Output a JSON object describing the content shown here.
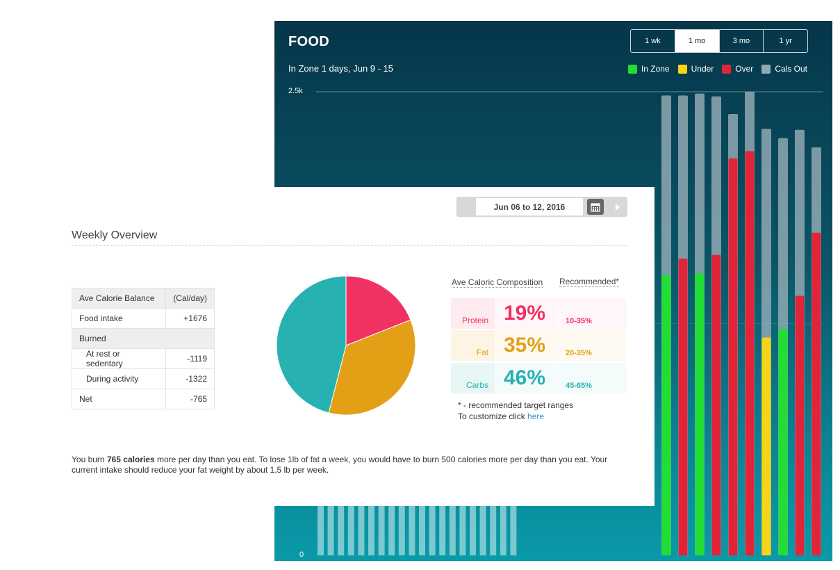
{
  "food_panel": {
    "title": "FOOD",
    "subtitle": "In Zone 1 days, Jun 9 - 15",
    "range_tabs": [
      {
        "label": "1 wk",
        "active": false
      },
      {
        "label": "1 mo",
        "active": true
      },
      {
        "label": "3 mo",
        "active": false
      },
      {
        "label": "1 yr",
        "active": false
      }
    ],
    "legend": [
      {
        "label": "In Zone",
        "color": "#22dd33"
      },
      {
        "label": "Under",
        "color": "#f6d417"
      },
      {
        "label": "Over",
        "color": "#e0243a"
      },
      {
        "label": "Cals Out",
        "color": "#8fa8b2"
      }
    ],
    "y_top_label": "2.5k",
    "y_zero_label": "0"
  },
  "chart_data": {
    "type": "bar",
    "ylim": [
      0,
      2500
    ],
    "grid": true,
    "legend_position": "top-right",
    "hidden_days": 20,
    "hidden_cals_out": 305,
    "series": [
      {
        "name": "Cals Out",
        "color": "#8fa8b2",
        "values": [
          2480,
          2480,
          2490,
          2475,
          2380,
          2500,
          2300,
          2250,
          2295,
          2200
        ]
      },
      {
        "name": "Food",
        "values": [
          1510,
          1600,
          1520,
          1620,
          2140,
          2180,
          1175,
          1220,
          1400,
          1740
        ]
      }
    ],
    "food_status": [
      "In Zone",
      "Over",
      "In Zone",
      "Over",
      "Over",
      "Over",
      "Under",
      "In Zone",
      "Over",
      "Over"
    ]
  },
  "overview": {
    "date_range": "Jun 06 to 12, 2016",
    "heading": "Weekly Overview",
    "table": {
      "header_label": "Ave Calorie Balance",
      "header_unit": "(Cal/day)",
      "food_intake_label": "Food intake",
      "food_intake_value": "+1676",
      "burned_label": "Burned",
      "rest_label": "At rest or sedentary",
      "rest_value": "-1119",
      "activity_label": "During activity",
      "activity_value": "-1322",
      "net_label": "Net",
      "net_value": "-765"
    },
    "composition_title": "Ave Caloric Composition",
    "recommended_title": "Recommended*",
    "composition": [
      {
        "label": "Protein",
        "pct": "19%",
        "range": "10-35%",
        "value": 19,
        "color": "#f23163",
        "bg": "#fdebef",
        "bg_light": "#fef6f8"
      },
      {
        "label": "Fat",
        "pct": "35%",
        "range": "20-35%",
        "value": 35,
        "color": "#e3a017",
        "bg": "#fdf4e4",
        "bg_light": "#fefaf2"
      },
      {
        "label": "Carbs",
        "pct": "46%",
        "range": "45-65%",
        "value": 46,
        "color": "#28b1b1",
        "bg": "#e8f6f6",
        "bg_light": "#f4fbfb"
      }
    ],
    "footnote_line1": "* - recommended target ranges",
    "footnote_line2_prefix": "To customize click",
    "footnote_link": "here",
    "summary": {
      "prefix": "You burn",
      "bold": "765 calories",
      "rest": "more per day than you eat. To lose 1lb of fat a week, you would have to burn 500 calories more per day than you eat. Your current intake should reduce your fat weight by about 1.5 lb per week."
    }
  }
}
